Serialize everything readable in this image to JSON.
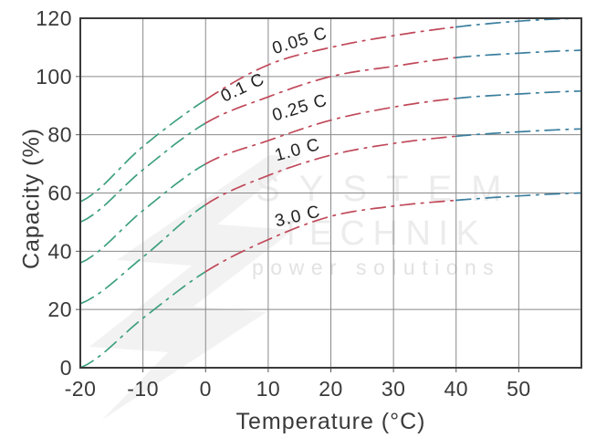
{
  "watermark": {
    "line1": "SYSTEM",
    "line2": "TECHNIK",
    "line3": "power solutions"
  },
  "chart_data": {
    "type": "line",
    "title": "",
    "xlabel": "Temperature (°C)",
    "ylabel": "Capacity (%)",
    "xlim": [
      -20,
      60
    ],
    "ylim": [
      0,
      120
    ],
    "x_ticks": [
      -20,
      -10,
      0,
      10,
      20,
      30,
      40,
      50
    ],
    "y_ticks": [
      0,
      20,
      40,
      60,
      80,
      100,
      120
    ],
    "grid": true,
    "grid_color": "#8a8a8a",
    "border_color": "#3a3a3a",
    "tick_label_color": "#3a3a3a",
    "curve_label_color": "#222222",
    "line_style": "dash-dot",
    "x": [
      -20,
      -10,
      0,
      10,
      20,
      30,
      40,
      50,
      60
    ],
    "series": [
      {
        "name": "0.05C",
        "label": "0.05 C",
        "values": [
          57,
          76,
          92,
          104,
          110,
          114,
          117,
          119,
          120
        ],
        "label_pos": {
          "t": 15.3,
          "cap": 110.5,
          "angle": -17
        }
      },
      {
        "name": "0.1C",
        "label": "0.1 C",
        "values": [
          50,
          68,
          84,
          93,
          100,
          103.5,
          106.5,
          108,
          109
        ],
        "label_pos": {
          "t": 6.3,
          "cap": 94.5,
          "angle": -25
        }
      },
      {
        "name": "0.25C",
        "label": "0.25 C",
        "values": [
          36,
          54,
          70,
          78,
          85,
          89.5,
          92.5,
          94,
          95
        ],
        "label_pos": {
          "t": 15.3,
          "cap": 87.5,
          "angle": -17
        }
      },
      {
        "name": "1.0C",
        "label": "1.0 C",
        "values": [
          22,
          38,
          56,
          66,
          73,
          77,
          79.5,
          81,
          82
        ],
        "label_pos": {
          "t": 14.9,
          "cap": 73.0,
          "angle": -15
        }
      },
      {
        "name": "3.0C",
        "label": "3.0 C",
        "values": [
          0,
          17,
          33,
          44,
          52,
          55.5,
          57.5,
          59,
          60
        ],
        "label_pos": {
          "t": 14.9,
          "cap": 50.2,
          "angle": -13
        }
      }
    ],
    "color_zones": [
      {
        "from": -20,
        "to": 0,
        "color": "#3fa080"
      },
      {
        "from": 0,
        "to": 40,
        "color": "#c0495a"
      },
      {
        "from": 40,
        "to": 60,
        "color": "#3b7f9e"
      }
    ]
  }
}
